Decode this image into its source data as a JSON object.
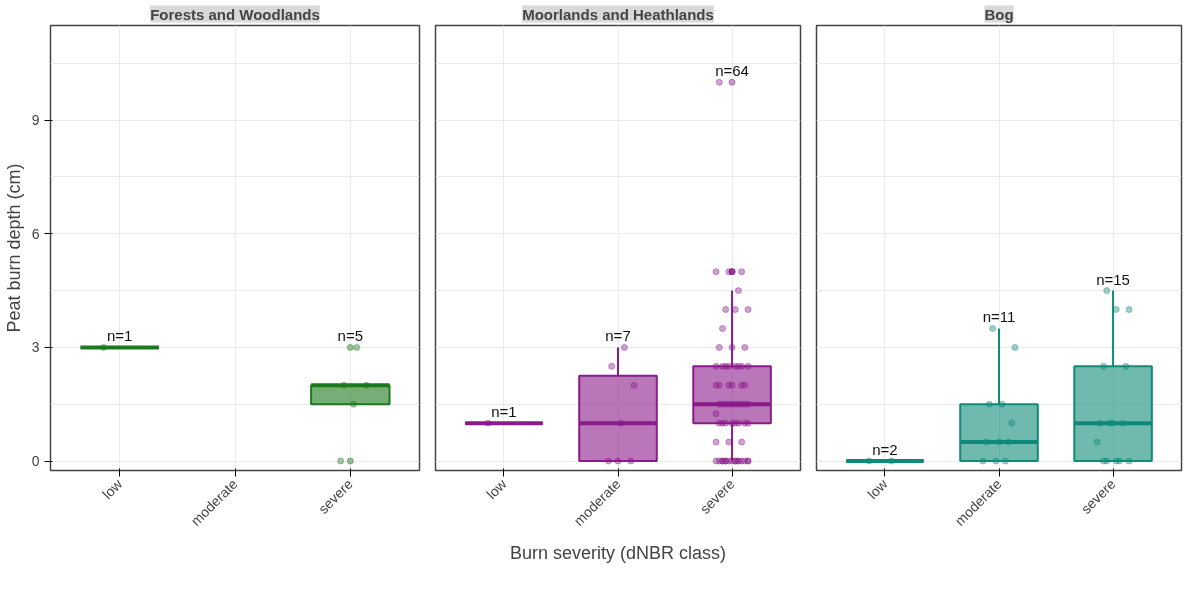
{
  "chart_data": [
    {
      "type": "box",
      "title": "Forests and Woodlands",
      "ylabel": "Peat burn depth (cm)",
      "categories": [
        "low",
        "moderate",
        "severe"
      ],
      "ylim": [
        -0.25,
        11.5
      ],
      "yticks": [
        0,
        3,
        6,
        9
      ],
      "grid": true,
      "series": [
        {
          "color": "#1b7a1b",
          "boxes": [
            {
              "low": 3,
              "q1": 3,
              "median": 3,
              "q3": 3,
              "high": 3
            },
            null,
            {
              "low": 1.5,
              "q1": 1.5,
              "median": 2,
              "q3": 2,
              "high": 2,
              "outliers": [
                3,
                0
              ]
            }
          ]
        },
        {
          "type": "scatter",
          "color": "#1b7a1b",
          "marker": "circle",
          "x": [
            "low",
            "severe",
            "severe",
            "severe",
            "severe",
            "severe"
          ],
          "values": [
            3,
            3,
            2,
            2,
            1.5,
            0
          ]
        }
      ],
      "annotations": [
        {
          "text": "n=1",
          "x": "low",
          "y": 3
        },
        {
          "text": "n=5",
          "x": "severe",
          "y": 3
        }
      ]
    },
    {
      "type": "box",
      "title": "Moorlands and Heathlands",
      "xlabel": "Burn severity (dNBR class)",
      "categories": [
        "low",
        "moderate",
        "severe"
      ],
      "ylim": [
        -0.25,
        11.5
      ],
      "yticks": [
        0,
        3,
        6,
        9
      ],
      "grid": true,
      "tick_labels": "x",
      "series": [
        {
          "color": "#8b1a8b",
          "boxes": [
            {
              "low": 1,
              "q1": 1,
              "median": 1,
              "q3": 1,
              "high": 1
            },
            {
              "low": 0,
              "q1": 0,
              "median": 1,
              "q3": 2.25,
              "high": 3
            },
            {
              "low": 0,
              "q1": 1,
              "median": 1.5,
              "q3": 2.5,
              "high": 4.5,
              "outliers": [
                5,
                5,
                5,
                10
              ]
            }
          ]
        },
        {
          "type": "scatter",
          "color": "#8b1a8b",
          "marker": "circle",
          "x": [
            "low",
            "moderate",
            "moderate",
            "moderate",
            "moderate",
            "moderate",
            "moderate",
            "moderate",
            "severe",
            "severe",
            "severe",
            "severe",
            "severe",
            "severe",
            "severe",
            "severe",
            "severe",
            "severe",
            "severe",
            "severe",
            "severe",
            "severe",
            "severe",
            "severe",
            "severe",
            "severe",
            "severe",
            "severe",
            "severe",
            "severe",
            "severe",
            "severe",
            "severe",
            "severe",
            "severe",
            "severe",
            "severe",
            "severe",
            "severe",
            "severe",
            "severe",
            "severe",
            "severe",
            "severe",
            "severe",
            "severe",
            "severe",
            "severe",
            "severe",
            "severe",
            "severe",
            "severe",
            "severe",
            "severe",
            "severe",
            "severe",
            "severe",
            "severe",
            "severe",
            "severe",
            "severe",
            "severe",
            "severe",
            "severe",
            "severe",
            "severe",
            "severe",
            "severe",
            "severe",
            "severe",
            "severe",
            "severe"
          ],
          "values": [
            1,
            3,
            2.5,
            2,
            1,
            0,
            0,
            0,
            10,
            5,
            5,
            5,
            4.5,
            4,
            4,
            4,
            3.5,
            3,
            3,
            3,
            2.5,
            2.5,
            2.5,
            2.5,
            2.5,
            2.5,
            2.5,
            2.5,
            2,
            2,
            2,
            2,
            2,
            2,
            1.5,
            1.5,
            1.5,
            1.5,
            1.5,
            1.5,
            1.5,
            1.5,
            1.5,
            1.5,
            1.25,
            1,
            1,
            1,
            1,
            1,
            1,
            1,
            1,
            0.5,
            0.5,
            0.5,
            0,
            0,
            0,
            0,
            0,
            0,
            0,
            0,
            0,
            0,
            0,
            0,
            0,
            0,
            0,
            0
          ]
        }
      ],
      "annotations": [
        {
          "text": "n=1",
          "x": "low",
          "y": 1
        },
        {
          "text": "n=7",
          "x": "moderate",
          "y": 3
        },
        "n=64"
      ]
    },
    {
      "type": "box",
      "title": "Bog",
      "categories": [
        "low",
        "moderate",
        "severe"
      ],
      "ylim": [
        -0.25,
        11.5
      ],
      "yticks": [
        0,
        3,
        6,
        9
      ],
      "grid": true,
      "tick_labels": "x",
      "series": [
        {
          "color": "#0f8a78",
          "boxes": [
            {
              "low": 0,
              "q1": 0,
              "median": 0,
              "q3": 0,
              "high": 0
            },
            {
              "low": 0,
              "q1": 0,
              "median": 0.5,
              "q3": 1.5,
              "high": 3.5
            },
            {
              "low": 0,
              "q1": 0,
              "median": 1,
              "q3": 2.5,
              "high": 4.5
            }
          ]
        },
        {
          "type": "scatter",
          "color": "#0f8a78",
          "marker": "circle",
          "x": [
            "low",
            "low",
            "moderate",
            "moderate",
            "moderate",
            "moderate",
            "moderate",
            "moderate",
            "moderate",
            "moderate",
            "moderate",
            "moderate",
            "moderate",
            "severe",
            "severe",
            "severe",
            "severe",
            "severe",
            "severe",
            "severe",
            "severe",
            "severe",
            "severe",
            "severe",
            "severe",
            "severe",
            "severe",
            "severe"
          ],
          "values": [
            0,
            0,
            3.5,
            3,
            1.5,
            1.5,
            1,
            0.5,
            0.5,
            0.5,
            0,
            0,
            0,
            4.5,
            4,
            4,
            2.5,
            2.5,
            1,
            1,
            1,
            1,
            0.5,
            0,
            0,
            0,
            0,
            0
          ]
        }
      ],
      "annotations": [
        {
          "text": "n=2",
          "x": "low",
          "y": 0
        },
        {
          "text": "n=11",
          "x": "moderate",
          "y": 3.5
        },
        {
          "text": "n=15",
          "x": "severe",
          "y": 4.5
        }
      ]
    }
  ]
}
